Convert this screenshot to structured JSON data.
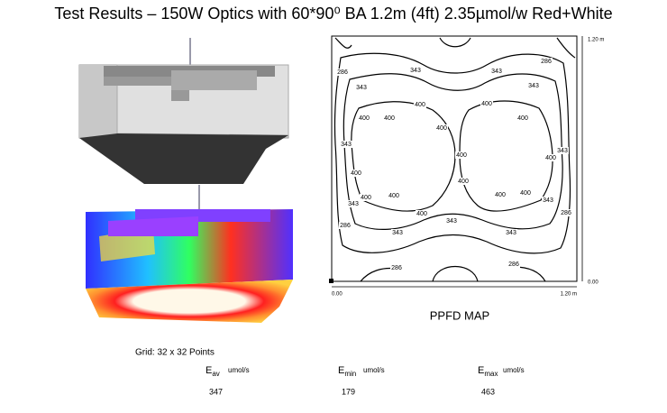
{
  "title": "Test Results – 150W Optics with 60*90⁰ BA 1.2m (4ft) 2.35µmol/w Red+White",
  "ppfd_map": {
    "caption": "PPFD MAP",
    "y_top": "1.20 m",
    "y_bottom": "0.00",
    "x_left": "0.00",
    "x_right": "1.20 m",
    "contour_levels": [
      286,
      343,
      400
    ]
  },
  "grid_note": "Grid: 32 x 32 Points",
  "stats": [
    {
      "symbol": "E",
      "sub": "av",
      "unit": "umol/s",
      "value": 347
    },
    {
      "symbol": "E",
      "sub": "min",
      "unit": "umol/s",
      "value": 179
    },
    {
      "symbol": "E",
      "sub": "max",
      "unit": "umol/s",
      "value": 463
    }
  ]
}
